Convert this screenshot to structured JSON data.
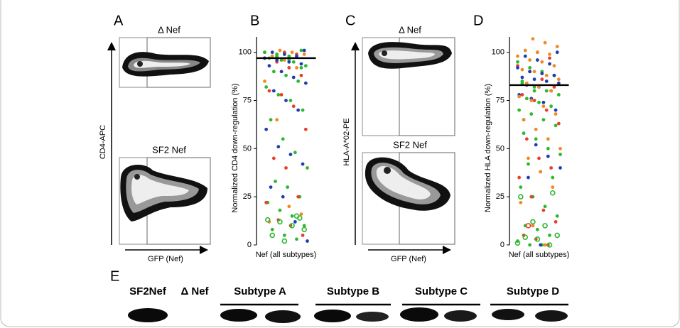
{
  "panel_labels": [
    "A",
    "B",
    "C",
    "D",
    "E"
  ],
  "flow_A": {
    "top_title": "Δ Nef",
    "bottom_title": "SF2 Nef",
    "y_label": "CD4-APC",
    "x_label": "GFP (Nef)"
  },
  "flow_C": {
    "top_title": "Δ Nef",
    "bottom_title": "SF2 Nef",
    "y_label": "HLA-A*02-PE",
    "x_label": "GFP (Nef)"
  },
  "chart_data": [
    {
      "type": "strip",
      "ylabel": "Normalized CD4 down-regulation (%)",
      "categories": [
        "Nef (all subtypes)"
      ],
      "ylim": [
        0,
        108
      ],
      "yticks": [
        0,
        25,
        50,
        75,
        100
      ],
      "mean": 97,
      "series": [
        {
          "color": "#2db82d",
          "marker": "filled",
          "values": [
            100,
            99,
            98,
            101,
            97,
            96,
            95,
            93,
            90,
            88,
            85,
            82,
            78,
            75,
            70,
            65,
            55,
            48,
            40,
            33,
            30,
            25,
            22,
            18,
            15,
            10,
            8,
            5,
            3,
            100,
            98,
            96,
            92
          ]
        },
        {
          "color": "#e8402a",
          "marker": "filled",
          "values": [
            100,
            99,
            97,
            95,
            92,
            88,
            80,
            78,
            72,
            60,
            45,
            40,
            25,
            22,
            13,
            10,
            5
          ]
        },
        {
          "color": "#1f3fb0",
          "marker": "filled",
          "values": [
            101,
            100,
            99,
            98,
            97,
            96,
            95,
            94,
            93,
            90,
            87,
            84,
            80,
            75,
            70,
            60,
            51,
            47,
            42,
            30,
            25,
            12,
            2
          ]
        },
        {
          "color": "#f08a24",
          "marker": "filled",
          "values": [
            101,
            100,
            99,
            98,
            96,
            92,
            85,
            65,
            20,
            16,
            12
          ]
        },
        {
          "color": "#2db82d",
          "marker": "open",
          "values": [
            14,
            13,
            12,
            10,
            8,
            5,
            2,
            15
          ]
        }
      ]
    },
    {
      "type": "strip",
      "ylabel": "Normalized  HLA down-regulation (%)",
      "categories": [
        "Nef (all subtypes)"
      ],
      "ylim": [
        0,
        108
      ],
      "yticks": [
        0,
        25,
        50,
        75,
        100
      ],
      "mean": 83,
      "series": [
        {
          "color": "#2db82d",
          "marker": "filled",
          "values": [
            95,
            92,
            90,
            88,
            85,
            82,
            80,
            78,
            76,
            74,
            72,
            70,
            68,
            65,
            62,
            58,
            55,
            50,
            47,
            42,
            38,
            35,
            30,
            25,
            20,
            15,
            10,
            8,
            5,
            2,
            0,
            0,
            88,
            84,
            80
          ]
        },
        {
          "color": "#e8402a",
          "marker": "filled",
          "values": [
            100,
            97,
            93,
            90,
            86,
            82,
            78,
            75,
            70,
            63,
            55,
            45,
            40,
            35,
            25,
            18,
            12,
            5,
            3,
            0
          ]
        },
        {
          "color": "#1f3fb0",
          "marker": "filled",
          "values": [
            100,
            98,
            96,
            94,
            92,
            90,
            89,
            88,
            87,
            86,
            85,
            84,
            83,
            82,
            80,
            78,
            76,
            74,
            70,
            65,
            52,
            46,
            40,
            35,
            0
          ]
        },
        {
          "color": "#f08a24",
          "marker": "filled",
          "values": [
            107,
            105,
            103,
            101,
            100,
            99,
            98,
            96,
            95,
            93,
            91,
            90,
            88,
            86,
            84,
            82,
            80,
            77,
            75,
            72,
            68,
            65,
            60,
            55,
            50,
            45,
            38,
            30,
            22,
            10,
            0
          ]
        },
        {
          "color": "#2db82d",
          "marker": "open",
          "values": [
            27,
            25,
            12,
            10,
            5,
            4,
            3,
            0,
            1
          ]
        },
        {
          "color": "#e8402a",
          "marker": "open",
          "values": [
            10
          ]
        }
      ]
    }
  ],
  "blot": {
    "lanes": [
      "SF2Nef",
      "Δ Nef",
      "Subtype A",
      "Subtype B",
      "Subtype C",
      "Subtype D"
    ]
  }
}
